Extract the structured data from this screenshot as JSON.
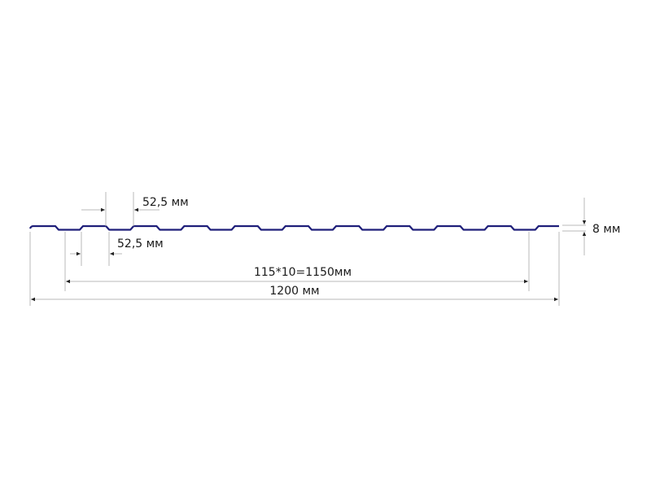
{
  "diagram": {
    "profile_color": "#1f1f7a",
    "dimension_color": "#b8b8b8",
    "labels": {
      "rib_top_width": "52,5 мм",
      "rib_bottom_width": "52,5 мм",
      "working_width": "115*10=1150мм",
      "total_width": "1200 мм",
      "height": "8 мм"
    }
  }
}
